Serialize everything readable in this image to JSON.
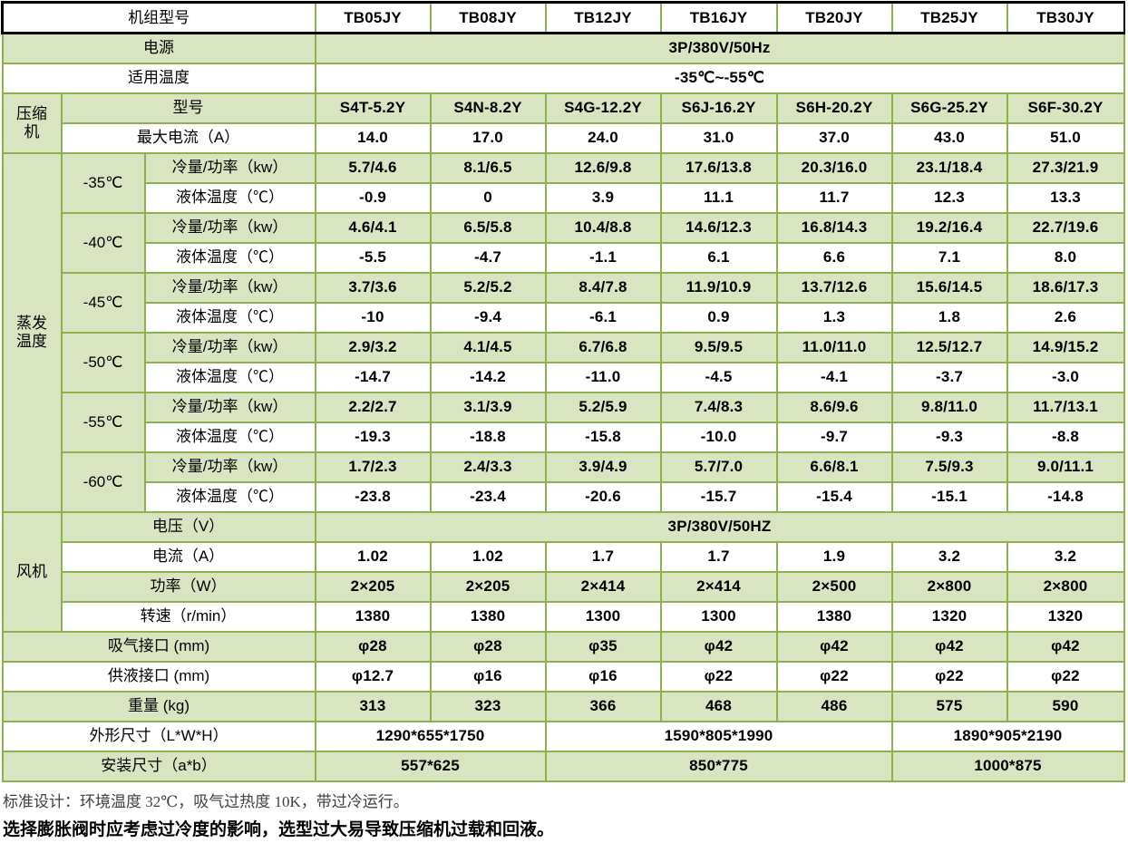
{
  "colors": {
    "fill_green": "#d9e5c1",
    "border_green": "#8fb04f",
    "header_border_black": "#000000"
  },
  "table": {
    "unit_model_row": {
      "label": "机组型号",
      "models": [
        "TB05JY",
        "TB08JY",
        "TB12JY",
        "TB16JY",
        "TB20JY",
        "TB25JY",
        "TB30JY"
      ]
    },
    "power_row": {
      "label": "电源",
      "value": "3P/380V/50Hz"
    },
    "temp_range_row": {
      "label": "适用温度",
      "value": "-35℃~-55℃"
    },
    "compressor": {
      "group_label": "压缩\n机",
      "model_row": {
        "label": "型号",
        "values": [
          "S4T-5.2Y",
          "S4N-8.2Y",
          "S4G-12.2Y",
          "S6J-16.2Y",
          "S6H-20.2Y",
          "S6G-25.2Y",
          "S6F-30.2Y"
        ]
      },
      "max_current_row": {
        "label": "最大电流（A）",
        "values": [
          "14.0",
          "17.0",
          "24.0",
          "31.0",
          "37.0",
          "43.0",
          "51.0"
        ]
      }
    },
    "evaporating": {
      "group_label": "蒸发\n温度",
      "capacity_label": "冷量/功率（kw）",
      "liquid_label": "液体温度（℃）",
      "temps": [
        {
          "temp": "-35℃",
          "capacity": [
            "5.7/4.6",
            "8.1/6.5",
            "12.6/9.8",
            "17.6/13.8",
            "20.3/16.0",
            "23.1/18.4",
            "27.3/21.9"
          ],
          "liquid": [
            "-0.9",
            "0",
            "3.9",
            "11.1",
            "11.7",
            "12.3",
            "13.3"
          ]
        },
        {
          "temp": "-40℃",
          "capacity": [
            "4.6/4.1",
            "6.5/5.8",
            "10.4/8.8",
            "14.6/12.3",
            "16.8/14.3",
            "19.2/16.4",
            "22.7/19.6"
          ],
          "liquid": [
            "-5.5",
            "-4.7",
            "-1.1",
            "6.1",
            "6.6",
            "7.1",
            "8.0"
          ]
        },
        {
          "temp": "-45℃",
          "capacity": [
            "3.7/3.6",
            "5.2/5.2",
            "8.4/7.8",
            "11.9/10.9",
            "13.7/12.6",
            "15.6/14.5",
            "18.6/17.3"
          ],
          "liquid": [
            "-10",
            "-9.4",
            "-6.1",
            "0.9",
            "1.3",
            "1.8",
            "2.6"
          ]
        },
        {
          "temp": "-50℃",
          "capacity": [
            "2.9/3.2",
            "4.1/4.5",
            "6.7/6.8",
            "9.5/9.5",
            "11.0/11.0",
            "12.5/12.7",
            "14.9/15.2"
          ],
          "liquid": [
            "-14.7",
            "-14.2",
            "-11.0",
            "-4.5",
            "-4.1",
            "-3.7",
            "-3.0"
          ]
        },
        {
          "temp": "-55℃",
          "capacity": [
            "2.2/2.7",
            "3.1/3.9",
            "5.2/5.9",
            "7.4/8.3",
            "8.6/9.6",
            "9.8/11.0",
            "11.7/13.1"
          ],
          "liquid": [
            "-19.3",
            "-18.8",
            "-15.8",
            "-10.0",
            "-9.7",
            "-9.3",
            "-8.8"
          ]
        },
        {
          "temp": "-60℃",
          "capacity": [
            "1.7/2.3",
            "2.4/3.3",
            "3.9/4.9",
            "5.7/7.0",
            "6.6/8.1",
            "7.5/9.3",
            "9.0/11.1"
          ],
          "liquid": [
            "-23.8",
            "-23.4",
            "-20.6",
            "-15.7",
            "-15.4",
            "-15.1",
            "-14.8"
          ]
        }
      ]
    },
    "fan": {
      "group_label": "风机",
      "voltage_row": {
        "label": "电压（V）",
        "value": "3P/380V/50HZ"
      },
      "current_row": {
        "label": "电流（A）",
        "values": [
          "1.02",
          "1.02",
          "1.7",
          "1.7",
          "1.9",
          "3.2",
          "3.2"
        ]
      },
      "power_row": {
        "label": "功率（W）",
        "values": [
          "2×205",
          "2×205",
          "2×414",
          "2×414",
          "2×500",
          "2×800",
          "2×800"
        ]
      },
      "speed_row": {
        "label": "转速（r/min）",
        "values": [
          "1380",
          "1380",
          "1300",
          "1300",
          "1380",
          "1320",
          "1320"
        ]
      }
    },
    "suction_row": {
      "label": "吸气接口 (mm)",
      "values": [
        "φ28",
        "φ28",
        "φ35",
        "φ42",
        "φ42",
        "φ42",
        "φ42"
      ]
    },
    "liquid_row": {
      "label": "供液接口 (mm)",
      "values": [
        "φ12.7",
        "φ16",
        "φ16",
        "φ22",
        "φ22",
        "φ22",
        "φ22"
      ]
    },
    "weight_row": {
      "label": "重量 (kg)",
      "values": [
        "313",
        "323",
        "366",
        "468",
        "486",
        "575",
        "590"
      ]
    },
    "dimensions_row": {
      "label": "外形尺寸（L*W*H）",
      "values": [
        {
          "text": "1290*655*1750",
          "span": 2
        },
        {
          "text": "1590*805*1990",
          "span": 3
        },
        {
          "text": "1890*905*2190",
          "span": 2
        }
      ]
    },
    "mounting_row": {
      "label": "安装尺寸（a*b）",
      "values": [
        {
          "text": "557*625",
          "span": 2
        },
        {
          "text": "850*775",
          "span": 3
        },
        {
          "text": "1000*875",
          "span": 2
        }
      ]
    }
  },
  "notes": {
    "line1": "标准设计：环境温度 32℃，吸气过热度 10K，带过冷运行。",
    "line2": "选择膨胀阀时应考虑过冷度的影响，选型过大易导致压缩机过载和回液。"
  }
}
